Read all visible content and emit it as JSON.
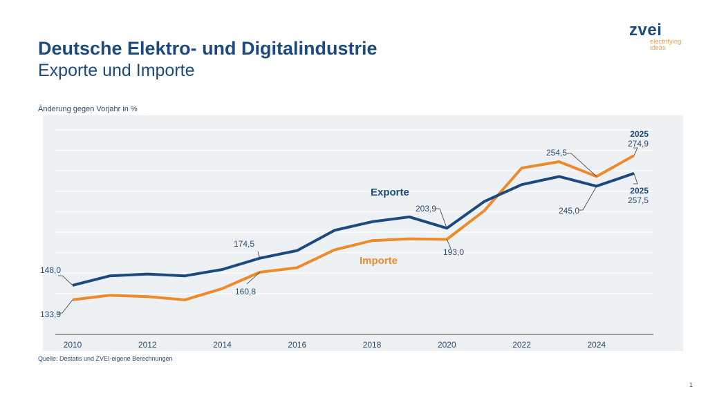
{
  "header": {
    "title": "Deutsche Elektro- und Digitalindustrie",
    "subtitle": "Exporte und Importe"
  },
  "logo": {
    "word": "zvei",
    "tagline_1": "electrifying",
    "tagline_2": "ideas"
  },
  "footer": {
    "source": "Quelle: Destatis und ZVEI-eigene Berechnungen",
    "page_number": "1"
  },
  "chart_data": {
    "type": "line",
    "title": "",
    "ylabel": "Änderung gegen Vorjahr in %",
    "xlabel": "",
    "x": [
      2010,
      2011,
      2012,
      2013,
      2014,
      2015,
      2016,
      2017,
      2018,
      2019,
      2020,
      2021,
      2022,
      2023,
      2024,
      2025
    ],
    "x_tick_labels": [
      "2010",
      "2012",
      "2014",
      "2016",
      "2018",
      "2020",
      "2022",
      "2024"
    ],
    "ylim": [
      100,
      314
    ],
    "y_gridlines": [
      140,
      160,
      180,
      200,
      220,
      240,
      260,
      280,
      300
    ],
    "grid": true,
    "y_tick_labels_shown": false,
    "legend": "inline labels",
    "series": [
      {
        "name": "Exporte",
        "color": "#1d4a7e",
        "values": [
          148.0,
          157.3,
          159.0,
          157.3,
          163.5,
          174.5,
          182.0,
          201.8,
          210.2,
          214.9,
          203.9,
          230.0,
          246.5,
          254.4,
          245.0,
          257.5
        ]
      },
      {
        "name": "Importe",
        "color": "#ec8a2c",
        "values": [
          133.9,
          138.3,
          137.0,
          133.8,
          144.8,
          160.8,
          165.3,
          182.7,
          191.7,
          193.5,
          193.0,
          221.0,
          262.7,
          268.9,
          254.5,
          274.9
        ]
      }
    ],
    "annotations": [
      {
        "series": 0,
        "x": 2010,
        "text": "148,0"
      },
      {
        "series": 1,
        "x": 2010,
        "text": "133,9"
      },
      {
        "series": 0,
        "x": 2015,
        "text": "174,5"
      },
      {
        "series": 1,
        "x": 2015,
        "text": "160,8"
      },
      {
        "series": 0,
        "x": 2020,
        "text": "203,9"
      },
      {
        "series": 1,
        "x": 2020,
        "text": "193,0"
      },
      {
        "series": 1,
        "x": 2024,
        "text": "254,5"
      },
      {
        "series": 0,
        "x": 2024,
        "text": "245,0"
      },
      {
        "series": 1,
        "x": 2025,
        "text": "274,9",
        "header": "2025"
      },
      {
        "series": 0,
        "x": 2025,
        "text": "257,5",
        "header": "2025"
      }
    ]
  }
}
